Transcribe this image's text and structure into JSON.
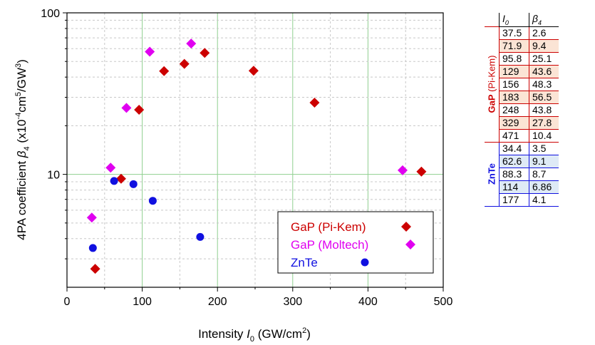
{
  "colors": {
    "gap_pikem": "#cc0000",
    "gap_moltech": "#e000f0",
    "znte": "#1010e0",
    "grid": "#8fcf8f",
    "row_fill_red": "#fbe4d5",
    "row_fill_blue": "#deeaf6"
  },
  "chart_data": {
    "type": "scatter",
    "xlabel": "Intensity I0 (GW/cm2)",
    "ylabel": "4PA coefficient β4 (x10-4cm5/GW3)",
    "xlim": [
      0,
      500
    ],
    "ylim": [
      2,
      100
    ],
    "yscale": "log",
    "grid": true,
    "legend_position": "bottom-right",
    "x_ticks": [
      "0",
      "100",
      "200",
      "300",
      "400",
      "500"
    ],
    "y_ticks": [
      "10",
      "100"
    ],
    "series": [
      {
        "name": "GaP (Pi-Kem)",
        "marker": "diamond",
        "color": "#cc0000",
        "points": [
          [
            37.5,
            2.6
          ],
          [
            71.9,
            9.4
          ],
          [
            95.8,
            25.1
          ],
          [
            129,
            43.6
          ],
          [
            156,
            48.3
          ],
          [
            183,
            56.5
          ],
          [
            248,
            43.8
          ],
          [
            329,
            27.8
          ],
          [
            471,
            10.4
          ]
        ]
      },
      {
        "name": "GaP (Moltech)",
        "marker": "diamond",
        "color": "#e000f0",
        "points": [
          [
            33,
            5.4
          ],
          [
            58,
            11.0
          ],
          [
            79,
            25.8
          ],
          [
            110,
            57.5
          ],
          [
            165,
            64.5
          ],
          [
            446,
            10.6
          ]
        ]
      },
      {
        "name": "ZnTe",
        "marker": "circle",
        "color": "#1010e0",
        "points": [
          [
            34.4,
            3.5
          ],
          [
            62.6,
            9.1
          ],
          [
            88.3,
            8.7
          ],
          [
            114,
            6.86
          ],
          [
            177,
            4.1
          ]
        ]
      }
    ]
  },
  "axis_labels": {
    "x_main": "Intensity ",
    "x_var": "I",
    "x_sub": "0",
    "x_unit": " (GW/cm",
    "x_sup": "2",
    "x_close": ")",
    "y_main": "4PA coefficient ",
    "y_var": "β",
    "y_sub": "4",
    "y_unit1": " (x10",
    "y_sup1": "-4",
    "y_unit2": "cm",
    "y_sup2": "5",
    "y_unit3": "/GW",
    "y_sup3": "3",
    "y_close": ")"
  },
  "table": {
    "header_i": "I",
    "header_i_sub": "0",
    "header_b": "β",
    "header_b_sub": "4",
    "groups": [
      {
        "label_bold": "GaP",
        "label_rest": " (Pi-Kem)",
        "color": "#cc0000",
        "rows": [
          [
            "37.5",
            "2.6"
          ],
          [
            "71.9",
            "9.4"
          ],
          [
            "95.8",
            "25.1"
          ],
          [
            "129",
            "43.6"
          ],
          [
            "156",
            "48.3"
          ],
          [
            "183",
            "56.5"
          ],
          [
            "248",
            "43.8"
          ],
          [
            "329",
            "27.8"
          ],
          [
            "471",
            "10.4"
          ]
        ]
      },
      {
        "label_bold": "ZnTe",
        "label_rest": "",
        "color": "#1010e0",
        "rows": [
          [
            "34.4",
            "3.5"
          ],
          [
            "62.6",
            "9.1"
          ],
          [
            "88.3",
            "8.7"
          ],
          [
            "114",
            "6.86"
          ],
          [
            "177",
            "4.1"
          ]
        ]
      }
    ]
  }
}
